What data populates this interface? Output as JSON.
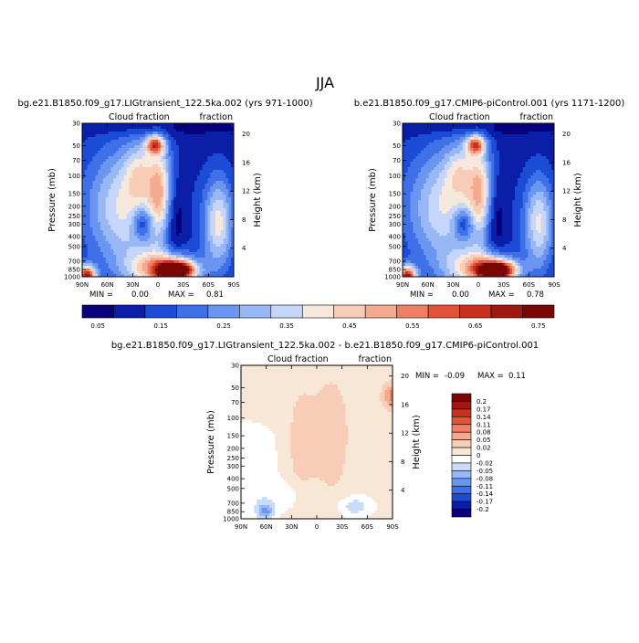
{
  "figure_title": "JJA",
  "chart_data": [
    {
      "type": "heatmap",
      "title": "bg.e21.B1850.f09_g17.LIGtransient_122.5ka.002 (yrs 971-1000)",
      "left_label": "Cloud fraction",
      "right_label": "fraction",
      "ylabel": "Pressure (mb)",
      "y2label": "Height (km)",
      "x_ticks": [
        "90N",
        "60N",
        "30N",
        "0",
        "30S",
        "60S",
        "90S"
      ],
      "y_ticks": [
        "1000",
        "850",
        "700",
        "500",
        "400",
        "300",
        "250",
        "200",
        "150",
        "100",
        "70",
        "50",
        "30"
      ],
      "y2_ticks": [
        "4",
        "8",
        "12",
        "16",
        "20"
      ],
      "min_label": "MIN =",
      "min_value": "0.00",
      "max_label": "MAX =",
      "max_value": "0.81",
      "colorbar_labels": [
        "0.05",
        "0.15",
        "0.25",
        "0.35",
        "0.45",
        "0.55",
        "0.65",
        "0.75"
      ],
      "colors": [
        "#08007a",
        "#0a1ea8",
        "#1c4cd6",
        "#3f70e8",
        "#6a95f0",
        "#98b8f5",
        "#c5d6fa",
        "#f6e8dc",
        "#f8cdb8",
        "#f5a98f",
        "#ee7f63",
        "#e05538",
        "#c83020",
        "#a01812",
        "#7a0606"
      ]
    },
    {
      "type": "heatmap",
      "title": "b.e21.B1850.f09_g17.CMIP6-piControl.001 (yrs 1171-1200)",
      "left_label": "Cloud fraction",
      "right_label": "fraction",
      "ylabel": "Pressure (mb)",
      "y2label": "Height (km)",
      "x_ticks": [
        "90N",
        "60N",
        "30N",
        "0",
        "30S",
        "60S",
        "90S"
      ],
      "y_ticks": [
        "1000",
        "850",
        "700",
        "500",
        "400",
        "300",
        "250",
        "200",
        "150",
        "100",
        "70",
        "50",
        "30"
      ],
      "y2_ticks": [
        "4",
        "8",
        "12",
        "16",
        "20"
      ],
      "min_label": "MIN =",
      "min_value": "0.00",
      "max_label": "MAX =",
      "max_value": "0.78",
      "colorbar_labels": [
        "0.05",
        "0.15",
        "0.25",
        "0.35",
        "0.45",
        "0.55",
        "0.65",
        "0.75"
      ],
      "colors": [
        "#08007a",
        "#0a1ea8",
        "#1c4cd6",
        "#3f70e8",
        "#6a95f0",
        "#98b8f5",
        "#c5d6fa",
        "#f6e8dc",
        "#f8cdb8",
        "#f5a98f",
        "#ee7f63",
        "#e05538",
        "#c83020",
        "#a01812",
        "#7a0606"
      ]
    },
    {
      "type": "heatmap",
      "title": "bg.e21.B1850.f09_g17.LIGtransient_122.5ka.002 - b.e21.B1850.f09_g17.CMIP6-piControl.001",
      "left_label": "Cloud fraction",
      "right_label": "fraction",
      "ylabel": "Pressure (mb)",
      "y2label": "Height (km)",
      "x_ticks": [
        "90N",
        "60N",
        "30N",
        "0",
        "30S",
        "60S",
        "90S"
      ],
      "y_ticks": [
        "1000",
        "850",
        "700",
        "500",
        "400",
        "300",
        "250",
        "200",
        "150",
        "100",
        "70",
        "50",
        "30"
      ],
      "y2_ticks": [
        "4",
        "8",
        "12",
        "16",
        "20"
      ],
      "min_label": "MIN =",
      "min_value": "-0.09",
      "max_label": "MAX =",
      "max_value": "0.11",
      "colorbar_labels": [
        "0.2",
        "0.17",
        "0.14",
        "0.11",
        "0.08",
        "0.05",
        "0.02",
        "0",
        "-0.02",
        "-0.05",
        "-0.08",
        "-0.11",
        "-0.14",
        "-0.17",
        "-0.2"
      ],
      "colors": [
        "#7a0606",
        "#a01812",
        "#c83020",
        "#e05538",
        "#ee7f63",
        "#f5a98f",
        "#f8cdb8",
        "#f8e6d6",
        "#ffffff",
        "#c8dcf8",
        "#98b8f5",
        "#6a95f0",
        "#3f70e8",
        "#1c4cd6",
        "#0a1ea8",
        "#08007a"
      ]
    }
  ]
}
